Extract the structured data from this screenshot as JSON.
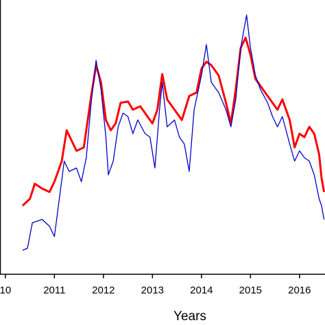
{
  "chart_data": {
    "type": "line",
    "x_label": "Years",
    "xlim": [
      2009.89,
      2016.52
    ],
    "xticks": [
      {
        "value": 2010,
        "label": "10"
      },
      2011,
      2012,
      2013,
      2014,
      2015,
      2016
    ],
    "ylim": [
      0,
      100
    ],
    "series": [
      {
        "color": "#ff0000",
        "width": 3,
        "x": [
          2010.35,
          2010.5,
          2010.6,
          2010.75,
          2010.9,
          2011.0,
          2011.15,
          2011.25,
          2011.35,
          2011.45,
          2011.6,
          2011.75,
          2011.85,
          2011.95,
          2012.05,
          2012.15,
          2012.25,
          2012.35,
          2012.5,
          2012.6,
          2012.75,
          2012.9,
          2013.0,
          2013.1,
          2013.2,
          2013.3,
          2013.45,
          2013.6,
          2013.75,
          2013.9,
          2014.0,
          2014.1,
          2014.2,
          2014.35,
          2014.5,
          2014.6,
          2014.7,
          2014.8,
          2014.9,
          2015.0,
          2015.1,
          2015.2,
          2015.35,
          2015.45,
          2015.55,
          2015.65,
          2015.8,
          2015.9,
          2016.0,
          2016.1,
          2016.2,
          2016.3,
          2016.4,
          2016.45,
          2016.5
        ],
        "values": [
          25,
          27.5,
          33,
          31.25,
          30,
          33.75,
          41.25,
          52.5,
          48.75,
          45,
          46.25,
          65,
          76.25,
          70,
          56.25,
          52.5,
          55,
          62.5,
          63,
          60,
          61.25,
          57.5,
          55,
          60,
          73,
          63.75,
          60,
          56.25,
          65,
          66.25,
          75,
          77.5,
          76.25,
          72.5,
          62.5,
          55,
          67.5,
          82.5,
          86.25,
          80,
          71.25,
          68.75,
          65,
          62.5,
          60,
          63.75,
          56.25,
          46.25,
          51.25,
          50,
          53.75,
          51.25,
          43.75,
          35,
          30
        ]
      },
      {
        "color": "#0000cc",
        "width": 1.3,
        "x": [
          2010.35,
          2010.45,
          2010.55,
          2010.75,
          2010.9,
          2011.0,
          2011.1,
          2011.2,
          2011.3,
          2011.45,
          2011.55,
          2011.65,
          2011.75,
          2011.85,
          2011.95,
          2012.05,
          2012.1,
          2012.2,
          2012.3,
          2012.4,
          2012.5,
          2012.6,
          2012.7,
          2012.85,
          2012.95,
          2013.05,
          2013.15,
          2013.2,
          2013.3,
          2013.45,
          2013.55,
          2013.65,
          2013.75,
          2013.85,
          2014.0,
          2014.1,
          2014.2,
          2014.35,
          2014.5,
          2014.6,
          2014.7,
          2014.8,
          2014.92,
          2015.0,
          2015.1,
          2015.2,
          2015.35,
          2015.45,
          2015.55,
          2015.65,
          2015.8,
          2015.9,
          2016.0,
          2016.1,
          2016.2,
          2016.3,
          2016.4,
          2016.45,
          2016.5
        ],
        "values": [
          8.75,
          9.5,
          18.75,
          20,
          17.5,
          13.75,
          27.5,
          41.25,
          37.5,
          38.75,
          33.75,
          42.5,
          62.5,
          78,
          67.5,
          50,
          36.25,
          41.25,
          53.75,
          58.75,
          57.5,
          51.25,
          56.25,
          51.25,
          50,
          38.75,
          61.25,
          70,
          53.75,
          56.25,
          50,
          47.5,
          37.5,
          60,
          72.5,
          83.75,
          70,
          66.25,
          60,
          53.75,
          63.75,
          82.5,
          94.5,
          82.5,
          72.5,
          67.5,
          62.5,
          57.5,
          53.75,
          57.5,
          47.5,
          41.25,
          45,
          42.5,
          41.25,
          36.25,
          27.5,
          25,
          20
        ]
      }
    ]
  }
}
